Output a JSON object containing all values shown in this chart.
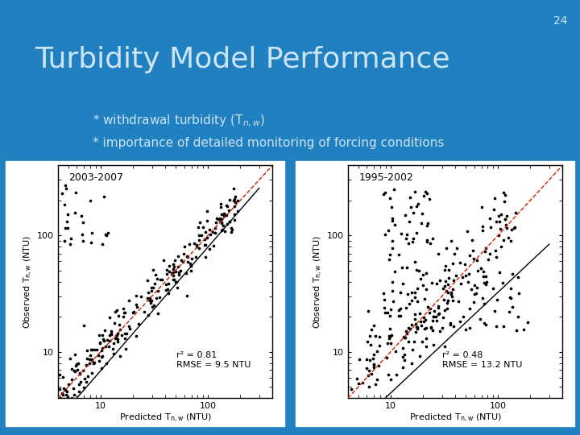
{
  "bg_color": "#2080c0",
  "slide_number": "24",
  "title": "Turbidity Model Performance",
  "bullet1": "* withdrawal turbidity (T$_{n,w}$)",
  "bullet2": "* importance of detailed monitoring of forcing conditions",
  "plot1_label": "2003-2007",
  "plot1_r2": "r² = 0.81",
  "plot1_rmse": "RMSE = 9.5 NTU",
  "plot2_label": "1995-2002",
  "plot2_r2": "r² = 0.48",
  "plot2_rmse": "RMSE = 13.2 NTU",
  "title_color": "#cce4f5",
  "title_fontsize": 26,
  "title_fontstyle": "normal",
  "bullet_color": "#cce4f5",
  "bullet_fontsize": 11,
  "slide_num_color": "#cce4f5",
  "plot_bg": "#ffffff",
  "scatter_color": "#000000",
  "line_black": "#000000",
  "line_red": "#cc2200",
  "panel_bg": "#f0f4f8"
}
